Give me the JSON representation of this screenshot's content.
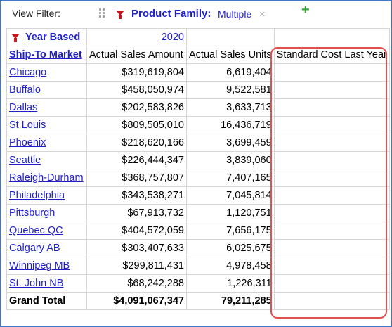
{
  "filter_bar": {
    "view_filter_label": "View Filter:",
    "product_family_label": "Product Family:",
    "product_family_value": "Multiple",
    "close_glyph": "×",
    "add_glyph": "+"
  },
  "column_filter": {
    "label": "Year Based",
    "year": "2020"
  },
  "table": {
    "headers": [
      "Ship-To Market",
      "Actual Sales Amount",
      "Actual Sales Units",
      "Standard Cost Last Year"
    ],
    "rows": [
      {
        "market": "Chicago",
        "amount": "$319,619,804",
        "units": "6,619,404",
        "std_cost": ""
      },
      {
        "market": "Buffalo",
        "amount": "$458,050,974",
        "units": "9,522,581",
        "std_cost": ""
      },
      {
        "market": "Dallas",
        "amount": "$202,583,826",
        "units": "3,633,713",
        "std_cost": ""
      },
      {
        "market": "St Louis",
        "amount": "$809,505,010",
        "units": "16,436,719",
        "std_cost": ""
      },
      {
        "market": "Phoenix",
        "amount": "$218,620,166",
        "units": "3,699,459",
        "std_cost": ""
      },
      {
        "market": "Seattle",
        "amount": "$226,444,347",
        "units": "3,839,060",
        "std_cost": ""
      },
      {
        "market": "Raleigh-Durham",
        "amount": "$368,757,807",
        "units": "7,407,165",
        "std_cost": ""
      },
      {
        "market": "Philadelphia",
        "amount": "$343,538,271",
        "units": "7,045,814",
        "std_cost": ""
      },
      {
        "market": "Pittsburgh",
        "amount": "$67,913,732",
        "units": "1,120,751",
        "std_cost": ""
      },
      {
        "market": "Quebec QC",
        "amount": "$404,572,059",
        "units": "7,656,175",
        "std_cost": ""
      },
      {
        "market": "Calgary AB",
        "amount": "$303,407,633",
        "units": "6,025,675",
        "std_cost": ""
      },
      {
        "market": "Winnipeg MB",
        "amount": "$299,811,431",
        "units": "4,978,458",
        "std_cost": ""
      },
      {
        "market": "St. John NB",
        "amount": "$68,242,288",
        "units": "1,226,311",
        "std_cost": ""
      }
    ],
    "grand_total": {
      "label": "Grand Total",
      "amount": "$4,091,067,347",
      "units": "79,211,285",
      "std_cost": ""
    }
  },
  "colors": {
    "link": "#1f1fc8",
    "filter_icon": "#c4161c",
    "add_icon": "#3aa53a",
    "highlight_border": "#e0504c",
    "frame_border": "#3f78c8"
  },
  "icons": [
    "drag-handle-icon",
    "filter-funnel-icon",
    "close-icon",
    "add-icon"
  ]
}
